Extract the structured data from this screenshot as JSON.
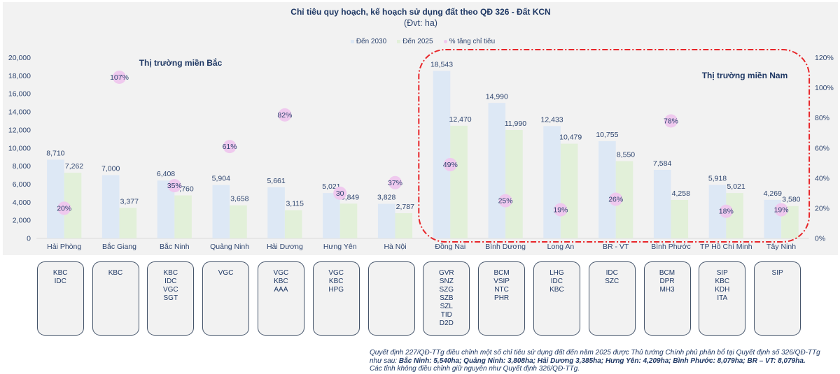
{
  "chart_data": {
    "type": "bar",
    "title": "Chỉ tiêu quy hoạch, kế hoạch sử dụng đất theo QĐ 326 - Đất KCN",
    "subtitle": "(Đvt: ha)",
    "xlabel": "",
    "ylabel": "",
    "categories": [
      "Hải Phòng",
      "Bắc Giang",
      "Bắc Ninh",
      "Quảng Ninh",
      "Hải Dương",
      "Hưng Yên",
      "Hà Nội",
      "Đồng Nai",
      "Bình Dương",
      "Long An",
      "BR - VT",
      "Bình Phước",
      "TP Hồ Chí Minh",
      "Tây Ninh"
    ],
    "series": [
      {
        "name": "Đến 2030",
        "type": "bar",
        "axis": "left",
        "color": "#dde8f5",
        "values": [
          8710,
          7000,
          6408,
          5904,
          5661,
          5021,
          3828,
          18543,
          14990,
          12433,
          10755,
          7584,
          5918,
          4269
        ],
        "labels": [
          "8,710",
          "7,000",
          "6,408",
          "5,904",
          "5,661",
          "5,021",
          "3,828",
          "18,543",
          "14,990",
          "12,433",
          "10,755",
          "7,584",
          "5,918",
          "4,269"
        ]
      },
      {
        "name": "Đến 2025",
        "type": "bar",
        "axis": "left",
        "color": "#e2f0d9",
        "values": [
          7262,
          3377,
          4760,
          3658,
          3115,
          3849,
          2787,
          12470,
          11990,
          10479,
          8550,
          4258,
          5021,
          3580
        ],
        "labels": [
          "7,262",
          "3,377",
          "4,760",
          "3,658",
          "3,115",
          "3,849",
          "2,787",
          "12,470",
          "11,990",
          "10,479",
          "8,550",
          "4,258",
          "5,021",
          "3,580"
        ]
      },
      {
        "name": "% tăng chỉ tiêu",
        "type": "scatter",
        "axis": "right",
        "color": "#efc9ee",
        "values": [
          20,
          107,
          35,
          61,
          82,
          30,
          37,
          49,
          25,
          19,
          26,
          78,
          18,
          19
        ],
        "labels": [
          "20%",
          "107%",
          "35%",
          "61%",
          "82%",
          "30",
          "37%",
          "49%",
          "25%",
          "19%",
          "26%",
          "78%",
          "18%",
          "19%"
        ]
      }
    ],
    "y_axis": {
      "min": 0,
      "max": 20000,
      "step": 2000,
      "tick_labels": [
        "0",
        "2,000",
        "4,000",
        "6,000",
        "8,000",
        "10,000",
        "12,000",
        "14,000",
        "16,000",
        "18,000",
        "20,000"
      ]
    },
    "y2_axis": {
      "min": 0,
      "max": 120,
      "step": 20,
      "unit": "%",
      "tick_labels": [
        "0%",
        "20%",
        "40%",
        "60%",
        "80%",
        "100%",
        "120%"
      ]
    },
    "grid": false,
    "legend_position": "top-center",
    "annotations": [
      {
        "text": "Thị trường miền Bắc",
        "region": "north"
      },
      {
        "text": "Thị trường miền Nam",
        "region": "south",
        "highlighted_categories": [
          "Đồng Nai",
          "Bình Dương",
          "Long An",
          "BR - VT",
          "Bình Phước",
          "TP Hồ Chí Minh",
          "Tây Ninh"
        ],
        "outline_color": "#e8262a",
        "outline_style": "dash-dot"
      }
    ]
  },
  "legend": [
    {
      "label": "Đến 2030",
      "color": "#dde8f5",
      "shape": "square"
    },
    {
      "label": "Đến 2025",
      "color": "#e2f0d9",
      "shape": "square"
    },
    {
      "label": "% tăng chỉ tiêu",
      "color": "#efc9ee",
      "shape": "circle"
    }
  ],
  "ticker_boxes": [
    [
      "KBC",
      "IDC"
    ],
    [
      "KBC"
    ],
    [
      "KBC",
      "IDC",
      "VGC",
      "SGT"
    ],
    [
      "VGC"
    ],
    [
      "VGC",
      "KBC",
      "AAA"
    ],
    [
      "VGC",
      "KBC",
      "HPG"
    ],
    [],
    [
      "GVR",
      "SNZ",
      "SZG",
      "SZB",
      "SZL",
      "TID",
      "D2D"
    ],
    [
      "BCM",
      "VSIP",
      "NTC",
      "PHR"
    ],
    [
      "LHG",
      "IDC",
      "KBC"
    ],
    [
      "IDC",
      "SZC"
    ],
    [
      "BCM",
      "DPR",
      "MH3"
    ],
    [
      "SIP",
      "KBC",
      "KDH",
      "ITA"
    ],
    [
      "SIP"
    ]
  ],
  "footnote": {
    "lines": [
      [
        {
          "text": "Quyết định 227/QĐ-TTg điều chỉnh một số chỉ tiêu sử dụng đất đến năm 2025 được Thủ tướng Chính phủ phân bổ tại Quyết định số 326/QĐ-TTg",
          "bold": false
        }
      ],
      [
        {
          "text": "như sau: ",
          "bold": false
        },
        {
          "text": "Bắc Ninh: 5,540ha; Quảng Ninh: 3,808ha; Hải Dương 3,385ha; Hưng Yên: 4,209ha; Bình Phước: 8,079ha; BR – VT: 8,079ha.",
          "bold": true
        }
      ],
      [
        {
          "text": "Các tỉnh không điều chỉnh giữ nguyên như Quyết định 326/QĐ-TTg.",
          "bold": false
        }
      ]
    ]
  }
}
